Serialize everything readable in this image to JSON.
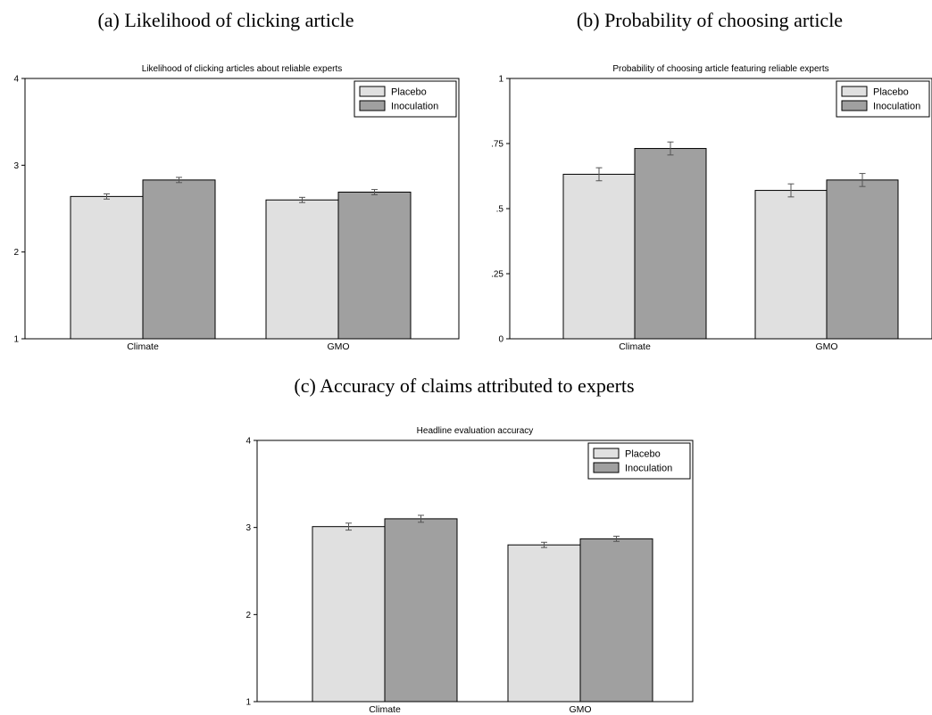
{
  "colors": {
    "placebo": "#e0e0e0",
    "inoculation": "#a0a0a0",
    "error_bar": "#555555"
  },
  "chart_data": [
    {
      "type": "bar",
      "caption": "(a) Likelihood of clicking article",
      "title": "Likelihood of clicking articles about reliable experts",
      "categories": [
        "Climate",
        "GMO"
      ],
      "ylim": [
        1,
        4
      ],
      "yticks": [
        1,
        2,
        3,
        4
      ],
      "ytick_labels": [
        "1",
        "2",
        "3",
        "4"
      ],
      "legend_position": "top-right",
      "series": [
        {
          "name": "Placebo",
          "values": [
            2.64,
            2.6
          ],
          "errors": [
            0.03,
            0.03
          ]
        },
        {
          "name": "Inoculation",
          "values": [
            2.83,
            2.69
          ],
          "errors": [
            0.03,
            0.03
          ]
        }
      ]
    },
    {
      "type": "bar",
      "caption": "(b) Probability of choosing article",
      "title": "Probability of choosing article featuring reliable experts",
      "categories": [
        "Climate",
        "GMO"
      ],
      "ylim": [
        0,
        1
      ],
      "yticks": [
        0,
        0.25,
        0.5,
        0.75,
        1
      ],
      "ytick_labels": [
        "0",
        ".25",
        ".5",
        ".75",
        "1"
      ],
      "legend_position": "top-right",
      "series": [
        {
          "name": "Placebo",
          "values": [
            0.632,
            0.57
          ],
          "errors": [
            0.025,
            0.025
          ]
        },
        {
          "name": "Inoculation",
          "values": [
            0.731,
            0.61
          ],
          "errors": [
            0.025,
            0.025
          ]
        }
      ]
    },
    {
      "type": "bar",
      "caption": "(c) Accuracy of claims attributed to experts",
      "title": "Headline evaluation accuracy",
      "categories": [
        "Climate",
        "GMO"
      ],
      "ylim": [
        1,
        4
      ],
      "yticks": [
        1,
        2,
        3,
        4
      ],
      "ytick_labels": [
        "1",
        "2",
        "3",
        "4"
      ],
      "legend_position": "top-right",
      "series": [
        {
          "name": "Placebo",
          "values": [
            3.01,
            2.8
          ],
          "errors": [
            0.04,
            0.03
          ]
        },
        {
          "name": "Inoculation",
          "values": [
            3.1,
            2.87
          ],
          "errors": [
            0.04,
            0.03
          ]
        }
      ]
    }
  ]
}
